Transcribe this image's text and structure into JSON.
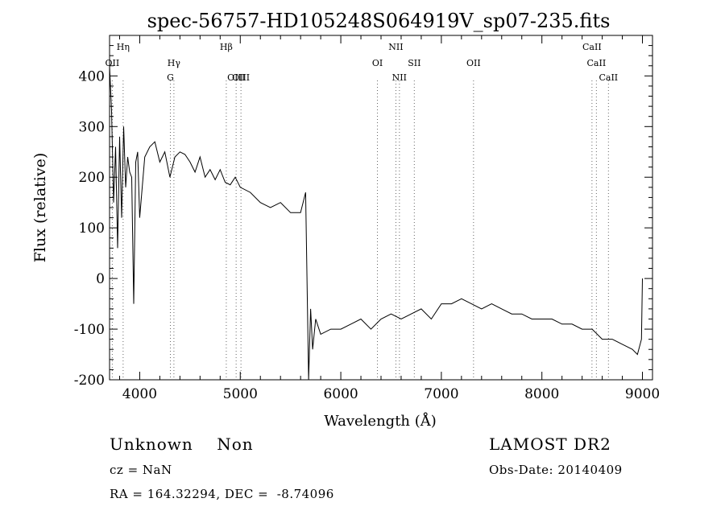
{
  "chart_data": {
    "type": "line",
    "title": "spec-56757-HD105248S064919V_sp07-235.fits",
    "xlabel": "Wavelength (Å)",
    "ylabel": "Flux (relative)",
    "xlim": [
      3700,
      9100
    ],
    "ylim": [
      -200,
      480
    ],
    "xticks": [
      4000,
      5000,
      6000,
      7000,
      8000,
      9000
    ],
    "yticks": [
      -200,
      -100,
      0,
      100,
      200,
      300,
      400
    ],
    "grid": false,
    "series": [
      {
        "x": [
          3700,
          3720,
          3740,
          3760,
          3780,
          3800,
          3820,
          3840,
          3860,
          3880,
          3900,
          3920,
          3940,
          3960,
          3980,
          4000,
          4050,
          4100,
          4150,
          4200,
          4250,
          4300,
          4350,
          4400,
          4450,
          4500,
          4550,
          4600,
          4650,
          4700,
          4750,
          4800,
          4850,
          4900,
          4950,
          5000,
          5100,
          5200,
          5300,
          5400,
          5500,
          5600,
          5650,
          5680,
          5700,
          5720,
          5750,
          5800,
          5900,
          6000,
          6100,
          6200,
          6300,
          6400,
          6500,
          6600,
          6700,
          6800,
          6900,
          7000,
          7100,
          7200,
          7300,
          7400,
          7500,
          7600,
          7700,
          7800,
          7900,
          8000,
          8100,
          8200,
          8300,
          8400,
          8500,
          8600,
          8700,
          8800,
          8900,
          8950,
          8990,
          9000
        ],
        "y": [
          420,
          330,
          150,
          260,
          60,
          280,
          120,
          300,
          180,
          240,
          210,
          200,
          -50,
          230,
          250,
          120,
          240,
          260,
          270,
          230,
          250,
          200,
          240,
          250,
          245,
          230,
          210,
          240,
          200,
          215,
          195,
          215,
          190,
          185,
          200,
          180,
          170,
          150,
          140,
          150,
          130,
          130,
          170,
          -200,
          -60,
          -140,
          -80,
          -110,
          -100,
          -100,
          -90,
          -80,
          -100,
          -80,
          -70,
          -80,
          -70,
          -60,
          -80,
          -50,
          -50,
          -40,
          -50,
          -60,
          -50,
          -60,
          -70,
          -70,
          -80,
          -80,
          -80,
          -90,
          -90,
          -100,
          -100,
          -120,
          -120,
          -130,
          -140,
          -150,
          -120,
          0
        ]
      }
    ],
    "lines": [
      {
        "label": "Hη",
        "x": 3835
      },
      {
        "label": "OII",
        "x": 3727
      },
      {
        "label": "Hγ",
        "x": 4340
      },
      {
        "label": "G",
        "x": 4305
      },
      {
        "label": "Hβ",
        "x": 4861
      },
      {
        "label": "OIII",
        "x": 4959
      },
      {
        "label": "OIII",
        "x": 5007
      },
      {
        "label": "OI",
        "x": 6364
      },
      {
        "label": "NII",
        "x": 6548
      },
      {
        "label": "NII",
        "x": 6583
      },
      {
        "label": "OII",
        "x": 7320
      },
      {
        "label": "SII",
        "x": 6731
      },
      {
        "label": "CaII",
        "x": 8498
      },
      {
        "label": "CaII",
        "x": 8542
      },
      {
        "label": "CaII",
        "x": 8662
      }
    ]
  },
  "footer": {
    "class_label": "Unknown    Non",
    "survey": "LAMOST DR2",
    "cz": "cz = NaN",
    "obs_date": "Obs-Date: 20140409",
    "coords": "RA = 164.32294, DEC =  -8.74096"
  }
}
